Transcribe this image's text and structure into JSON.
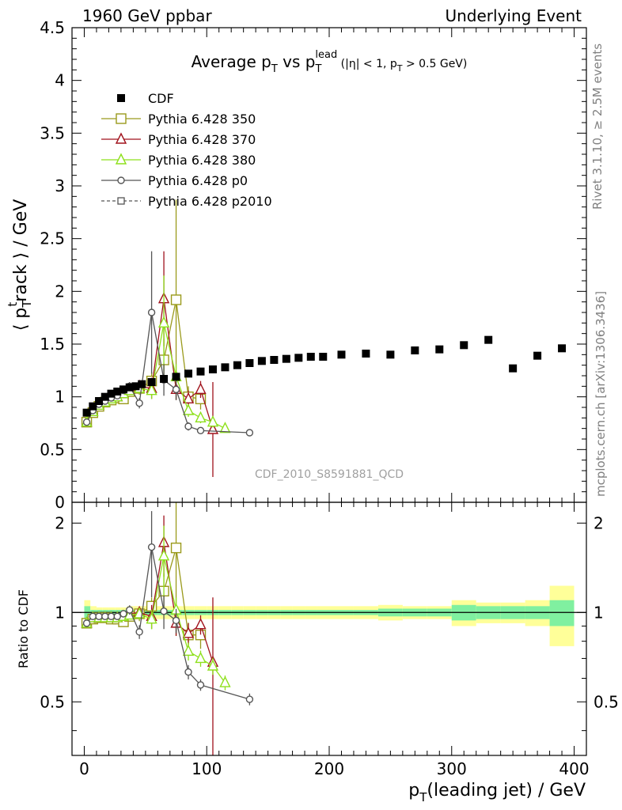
{
  "header": {
    "left": "1960 GeV ppbar",
    "right": "Underlying Event"
  },
  "side_labels": {
    "rivet": "Rivet 3.1.10, ≥ 2.5M events",
    "mcplots": "mcplots.cern.ch [arXiv:1306.3436]"
  },
  "chart_data": {
    "type": "scatter",
    "title": "Average p_T vs p_T^lead (|η| < 1, p_T > 0.5 GeV)",
    "watermark": "CDF_2010_S8591881_QCD",
    "xlabel": "p_T(leading jet) / GeV",
    "ylabel": "⟨ p_T^track ⟩ / GeV",
    "ratio_ylabel": "Ratio to CDF",
    "xlim": [
      -10,
      410
    ],
    "ylim": [
      0,
      4.5
    ],
    "ratio_ylim": [
      0.33,
      2.35
    ],
    "x_ticks": [
      0,
      100,
      200,
      300,
      400
    ],
    "y_ticks": [
      0,
      0.5,
      1,
      1.5,
      2,
      2.5,
      3,
      3.5,
      4,
      4.5
    ],
    "ratio_ticks": [
      0.5,
      1,
      2
    ],
    "legend_position": "top-left",
    "series": [
      {
        "name": "CDF",
        "color": "#000000",
        "marker": "filled-square",
        "x": [
          2,
          7,
          12,
          17,
          22,
          27,
          32,
          37,
          42,
          47,
          55,
          65,
          75,
          85,
          95,
          105,
          115,
          125,
          135,
          145,
          155,
          165,
          175,
          185,
          195,
          210,
          230,
          250,
          270,
          290,
          310,
          330,
          350,
          370,
          390
        ],
        "y": [
          0.85,
          0.91,
          0.96,
          1.0,
          1.03,
          1.05,
          1.07,
          1.09,
          1.1,
          1.12,
          1.14,
          1.17,
          1.19,
          1.22,
          1.24,
          1.26,
          1.28,
          1.3,
          1.32,
          1.34,
          1.35,
          1.36,
          1.37,
          1.38,
          1.38,
          1.4,
          1.41,
          1.4,
          1.44,
          1.45,
          1.49,
          1.54,
          1.27,
          1.39,
          1.46
        ]
      },
      {
        "name": "Pythia 6.428 350",
        "color": "#9a9a1c",
        "marker": "open-square",
        "x": [
          2,
          7,
          12,
          17,
          22,
          27,
          32,
          37,
          45,
          55,
          65,
          75,
          85,
          95
        ],
        "y": [
          0.76,
          0.85,
          0.91,
          0.95,
          0.97,
          0.99,
          0.98,
          1.05,
          1.08,
          1.15,
          1.35,
          1.92,
          1.0,
          0.98
        ],
        "yerr": [
          0.02,
          0.02,
          0.02,
          0.02,
          0.02,
          0.02,
          0.03,
          0.04,
          0.06,
          0.08,
          0.2,
          0.95,
          0.1,
          0.1
        ],
        "ratio": [
          0.92,
          0.95,
          0.96,
          0.96,
          0.95,
          0.95,
          0.93,
          0.97,
          0.99,
          1.05,
          1.18,
          1.65,
          0.84,
          0.84
        ]
      },
      {
        "name": "Pythia 6.428 370",
        "color": "#a0121c",
        "marker": "open-triangle",
        "x": [
          2,
          7,
          12,
          17,
          22,
          27,
          32,
          37,
          45,
          55,
          65,
          75,
          85,
          95,
          105
        ],
        "y": [
          0.76,
          0.86,
          0.92,
          0.95,
          0.98,
          1.0,
          1.03,
          1.07,
          1.1,
          1.08,
          1.93,
          1.07,
          0.98,
          1.07,
          0.69
        ],
        "yerr": [
          0.02,
          0.02,
          0.02,
          0.02,
          0.02,
          0.03,
          0.03,
          0.04,
          0.05,
          0.1,
          0.45,
          0.1,
          0.08,
          0.08,
          0.45
        ],
        "ratio": [
          0.92,
          0.96,
          0.96,
          0.96,
          0.96,
          0.96,
          0.97,
          0.99,
          1.0,
          0.97,
          1.72,
          0.92,
          0.85,
          0.91,
          0.68
        ]
      },
      {
        "name": "Pythia 6.428 380",
        "color": "#8ee01c",
        "marker": "open-triangle",
        "x": [
          2,
          7,
          12,
          17,
          22,
          27,
          32,
          37,
          45,
          55,
          65,
          75,
          85,
          95,
          105,
          115
        ],
        "y": [
          0.76,
          0.86,
          0.92,
          0.95,
          0.98,
          1.0,
          1.03,
          1.06,
          1.08,
          1.06,
          1.7,
          1.19,
          0.87,
          0.8,
          0.76,
          0.7
        ],
        "yerr": [
          0.02,
          0.02,
          0.02,
          0.02,
          0.02,
          0.02,
          0.03,
          0.03,
          0.05,
          0.08,
          0.45,
          0.12,
          0.06,
          0.05,
          0.05,
          0.04
        ],
        "ratio": [
          0.92,
          0.96,
          0.96,
          0.96,
          0.96,
          0.96,
          0.97,
          0.98,
          0.99,
          0.95,
          1.55,
          1.02,
          0.74,
          0.7,
          0.66,
          0.58
        ]
      },
      {
        "name": "Pythia 6.428 p0",
        "color": "#555555",
        "marker": "open-circle",
        "x": [
          2,
          7,
          12,
          17,
          22,
          27,
          32,
          37,
          45,
          55,
          65,
          75,
          85,
          95,
          135
        ],
        "y": [
          0.76,
          0.87,
          0.93,
          0.96,
          0.99,
          1.01,
          1.06,
          1.1,
          0.94,
          1.8,
          1.16,
          1.07,
          0.72,
          0.68,
          0.66
        ],
        "yerr": [
          0.02,
          0.02,
          0.02,
          0.02,
          0.02,
          0.02,
          0.03,
          0.04,
          0.05,
          0.58,
          0.15,
          0.1,
          0.04,
          0.03,
          0.03
        ],
        "ratio": [
          0.92,
          0.97,
          0.97,
          0.97,
          0.97,
          0.97,
          0.99,
          1.02,
          0.86,
          1.66,
          1.01,
          0.94,
          0.63,
          0.57,
          0.51
        ]
      },
      {
        "name": "Pythia 6.428 p2010",
        "color": "#555555",
        "marker": "open-square",
        "dashed": true,
        "x": [],
        "y": []
      }
    ],
    "cdf_errors": {
      "x_edges": [
        0,
        5,
        10,
        15,
        20,
        25,
        30,
        35,
        40,
        45,
        50,
        60,
        70,
        80,
        90,
        100,
        110,
        120,
        130,
        140,
        150,
        160,
        170,
        180,
        190,
        200,
        220,
        240,
        260,
        280,
        300,
        320,
        340,
        360,
        380,
        400
      ],
      "stat": [
        0.05,
        0.02,
        0.02,
        0.02,
        0.02,
        0.02,
        0.02,
        0.02,
        0.02,
        0.02,
        0.02,
        0.02,
        0.02,
        0.02,
        0.02,
        0.02,
        0.02,
        0.02,
        0.02,
        0.02,
        0.02,
        0.02,
        0.02,
        0.02,
        0.02,
        0.02,
        0.02,
        0.03,
        0.03,
        0.03,
        0.06,
        0.05,
        0.05,
        0.05,
        0.1
      ],
      "total": [
        0.1,
        0.05,
        0.04,
        0.04,
        0.04,
        0.04,
        0.04,
        0.05,
        0.05,
        0.05,
        0.05,
        0.05,
        0.05,
        0.05,
        0.05,
        0.05,
        0.05,
        0.05,
        0.05,
        0.05,
        0.05,
        0.05,
        0.05,
        0.05,
        0.05,
        0.05,
        0.05,
        0.06,
        0.05,
        0.05,
        0.1,
        0.08,
        0.08,
        0.1,
        0.23
      ]
    }
  }
}
